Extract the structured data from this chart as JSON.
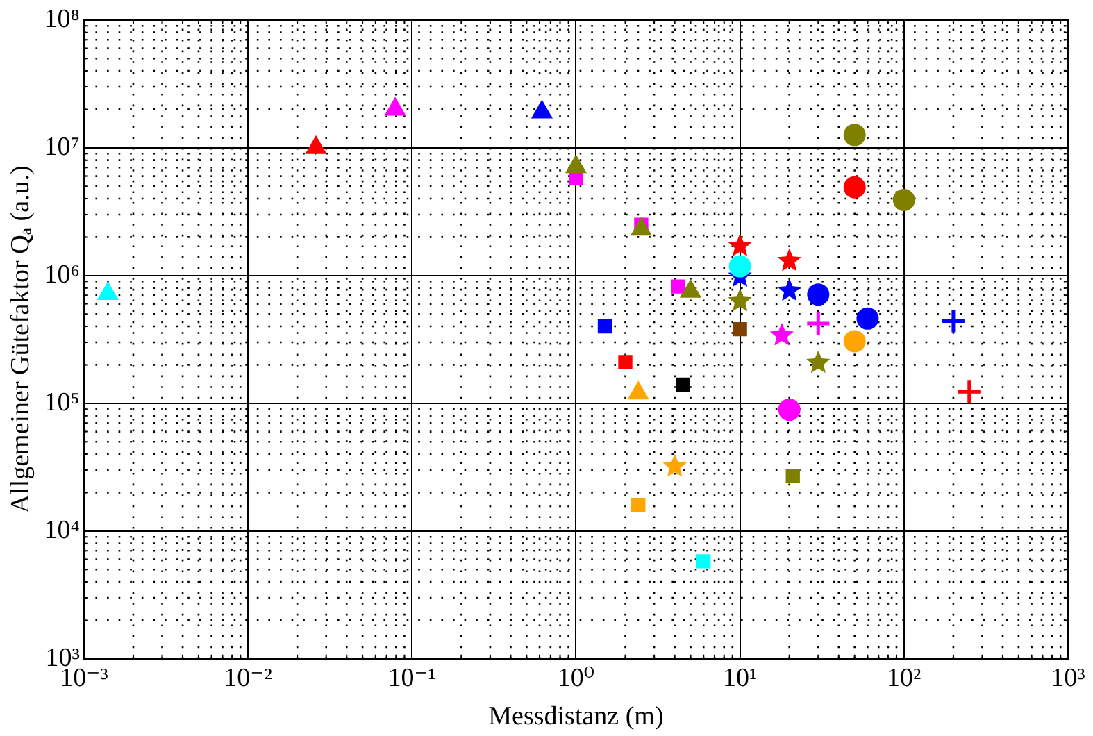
{
  "chart_data": {
    "type": "scatter",
    "xlabel": "Messdistanz (m)",
    "ylabel": "Allgemeiner Gütefaktor Qₐ (a.u.)",
    "log": "xy",
    "grid": true,
    "xlim": [
      0.001,
      1000
    ],
    "xticks": [
      {
        "value": 0.001,
        "label": "10⁻³"
      },
      {
        "value": 0.01,
        "label": "10⁻²"
      },
      {
        "value": 0.1,
        "label": "10⁻¹"
      },
      {
        "value": 1,
        "label": "10⁰"
      },
      {
        "value": 10,
        "label": "10¹"
      },
      {
        "value": 100,
        "label": "10²"
      },
      {
        "value": 1000,
        "label": "10³"
      }
    ],
    "ylim": [
      1000,
      100000000
    ],
    "yticks": [
      {
        "value": 1000,
        "label": "10³"
      },
      {
        "value": 10000,
        "label": "10⁴"
      },
      {
        "value": 100000,
        "label": "10⁵"
      },
      {
        "value": 1000000,
        "label": "10⁶"
      },
      {
        "value": 10000000,
        "label": "10⁷"
      },
      {
        "value": 100000000,
        "label": "10⁸"
      }
    ],
    "legend": false,
    "series": [
      {
        "color": "#00ffff",
        "marker": "triangle",
        "x": [
          0.0014
        ],
        "values": [
          720000
        ]
      },
      {
        "color": "#ff0000",
        "marker": "triangle",
        "x": [
          0.026
        ],
        "values": [
          10000000
        ]
      },
      {
        "color": "#ff00ff",
        "marker": "triangle",
        "x": [
          0.079
        ],
        "values": [
          20000000
        ]
      },
      {
        "color": "#0000ff",
        "marker": "triangle",
        "x": [
          0.62
        ],
        "values": [
          19000000
        ]
      },
      {
        "color": "#ff00ff",
        "marker": "square",
        "x": [
          1,
          2.5,
          4.2
        ],
        "values": [
          5800000,
          2500000,
          820000
        ]
      },
      {
        "color": "#808000",
        "marker": "triangle",
        "x": [
          1,
          2.5,
          5
        ],
        "values": [
          7100000,
          2300000,
          750000
        ]
      },
      {
        "color": "#0000ff",
        "marker": "square",
        "x": [
          1.5
        ],
        "values": [
          400000
        ]
      },
      {
        "color": "#ff0000",
        "marker": "square",
        "x": [
          2
        ],
        "values": [
          210000
        ]
      },
      {
        "color": "#ffa500",
        "marker": "triangle",
        "x": [
          2.4
        ],
        "values": [
          120000
        ]
      },
      {
        "color": "#000000",
        "marker": "square",
        "x": [
          4.5
        ],
        "values": [
          140000
        ]
      },
      {
        "color": "#ffa500",
        "marker": "star",
        "x": [
          4
        ],
        "values": [
          32000
        ]
      },
      {
        "color": "#ffa500",
        "marker": "square",
        "x": [
          2.4
        ],
        "values": [
          16000
        ]
      },
      {
        "color": "#00ffff",
        "marker": "square",
        "x": [
          6
        ],
        "values": [
          5800
        ]
      },
      {
        "color": "#804000",
        "marker": "square",
        "x": [
          10
        ],
        "values": [
          380000
        ]
      },
      {
        "color": "#808000",
        "marker": "square",
        "x": [
          21
        ],
        "values": [
          27000
        ]
      },
      {
        "color": "#ff0000",
        "marker": "star",
        "x": [
          10,
          20
        ],
        "values": [
          1700000,
          1300000
        ]
      },
      {
        "color": "#0000ff",
        "marker": "star",
        "x": [
          10,
          20
        ],
        "values": [
          980000,
          760000
        ]
      },
      {
        "color": "#808000",
        "marker": "star",
        "x": [
          10,
          30
        ],
        "values": [
          630000,
          207000
        ]
      },
      {
        "color": "#ff00ff",
        "marker": "star",
        "x": [
          18
        ],
        "values": [
          340000
        ]
      },
      {
        "color": "#00ffff",
        "marker": "circle",
        "x": [
          10
        ],
        "values": [
          1180000
        ]
      },
      {
        "color": "#0000ff",
        "marker": "circle",
        "x": [
          30,
          60
        ],
        "values": [
          710000,
          460000
        ]
      },
      {
        "color": "#808000",
        "marker": "circle",
        "x": [
          50,
          100
        ],
        "values": [
          12600000,
          3900000
        ]
      },
      {
        "color": "#ff0000",
        "marker": "circle",
        "x": [
          50
        ],
        "values": [
          4900000
        ]
      },
      {
        "color": "#ffa500",
        "marker": "circle",
        "x": [
          50
        ],
        "values": [
          306000
        ]
      },
      {
        "color": "#ff00ff",
        "marker": "circle",
        "x": [
          20
        ],
        "values": [
          89000
        ]
      },
      {
        "color": "#ff00ff",
        "marker": "cross",
        "x": [
          30
        ],
        "values": [
          420000
        ]
      },
      {
        "color": "#0000ff",
        "marker": "cross",
        "x": [
          200
        ],
        "values": [
          440000
        ]
      },
      {
        "color": "#ff0000",
        "marker": "cross",
        "x": [
          250
        ],
        "values": [
          123000
        ]
      }
    ]
  }
}
